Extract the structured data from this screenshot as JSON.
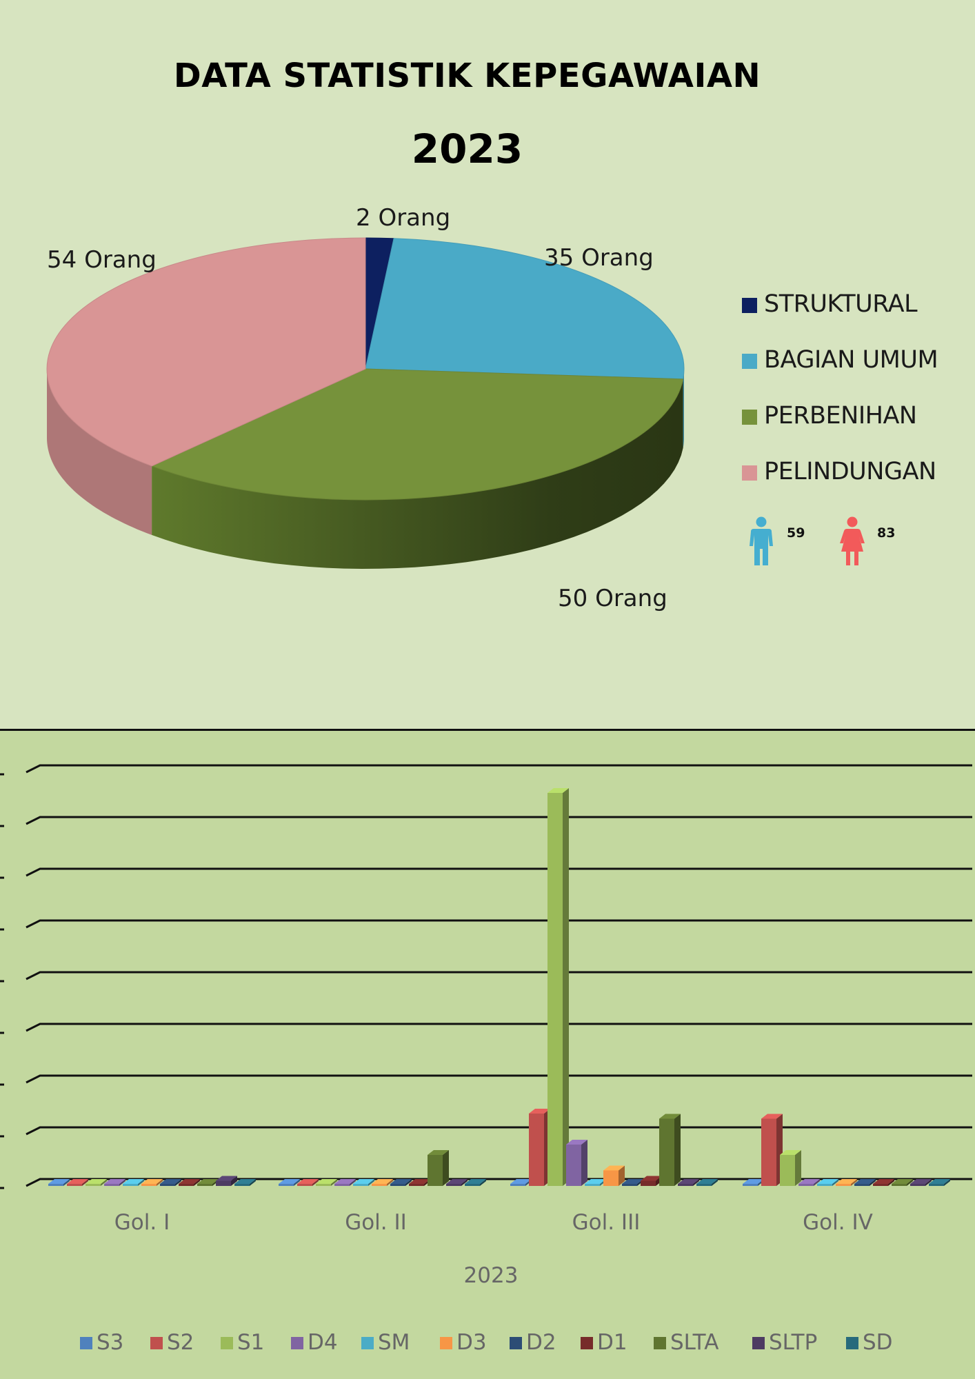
{
  "header": {
    "title": "DATA STATISTIK KEPEGAWAIAN",
    "year": "2023"
  },
  "gender": {
    "male_count": "59",
    "female_count": "83",
    "male_color": "#45aed0",
    "female_color": "#f25a5a"
  },
  "chart_data": [
    {
      "type": "pie",
      "title": "",
      "slices": [
        {
          "name": "STRUKTURAL",
          "value": 2,
          "label": "2 Orang",
          "color": "#0d2060"
        },
        {
          "name": "BAGIAN UMUM",
          "value": 35,
          "label": "35 Orang",
          "color": "#4aaac7"
        },
        {
          "name": "PERBENIHAN",
          "value": 50,
          "label": "50 Orang",
          "color": "#76923b"
        },
        {
          "name": "PELINDUNGAN",
          "value": 54,
          "label": "54 Orang",
          "color": "#d99595"
        }
      ],
      "legend_position": "right"
    },
    {
      "type": "bar",
      "categories": [
        "Gol. I",
        "Gol. II",
        "Gol. III",
        "Gol. IV"
      ],
      "xlabel": "2023",
      "ylabel": "",
      "ylim": [
        0,
        80
      ],
      "grid": true,
      "legend_position": "bottom",
      "series": [
        {
          "name": "S3",
          "color": "#4f81bd",
          "values": [
            0,
            0,
            0,
            0
          ]
        },
        {
          "name": "S2",
          "color": "#c0504d",
          "values": [
            0,
            0,
            14,
            13
          ]
        },
        {
          "name": "S1",
          "color": "#9bbb59",
          "values": [
            0,
            0,
            76,
            6
          ]
        },
        {
          "name": "D4",
          "color": "#8064a2",
          "values": [
            0,
            0,
            8,
            0
          ]
        },
        {
          "name": "SM",
          "color": "#4bacc6",
          "values": [
            0,
            0,
            0,
            0
          ]
        },
        {
          "name": "D3",
          "color": "#f79646",
          "values": [
            0,
            0,
            3,
            0
          ]
        },
        {
          "name": "D2",
          "color": "#2c4d75",
          "values": [
            0,
            0,
            0,
            0
          ]
        },
        {
          "name": "D1",
          "color": "#772c2a",
          "values": [
            0,
            0,
            1,
            0
          ]
        },
        {
          "name": "SLTA",
          "color": "#5f7530",
          "values": [
            0,
            6,
            13,
            0
          ]
        },
        {
          "name": "SLTP",
          "color": "#4d3b62",
          "values": [
            1,
            0,
            0,
            0
          ]
        },
        {
          "name": "SD",
          "color": "#276a7c",
          "values": [
            0,
            0,
            0,
            0
          ]
        }
      ]
    }
  ]
}
